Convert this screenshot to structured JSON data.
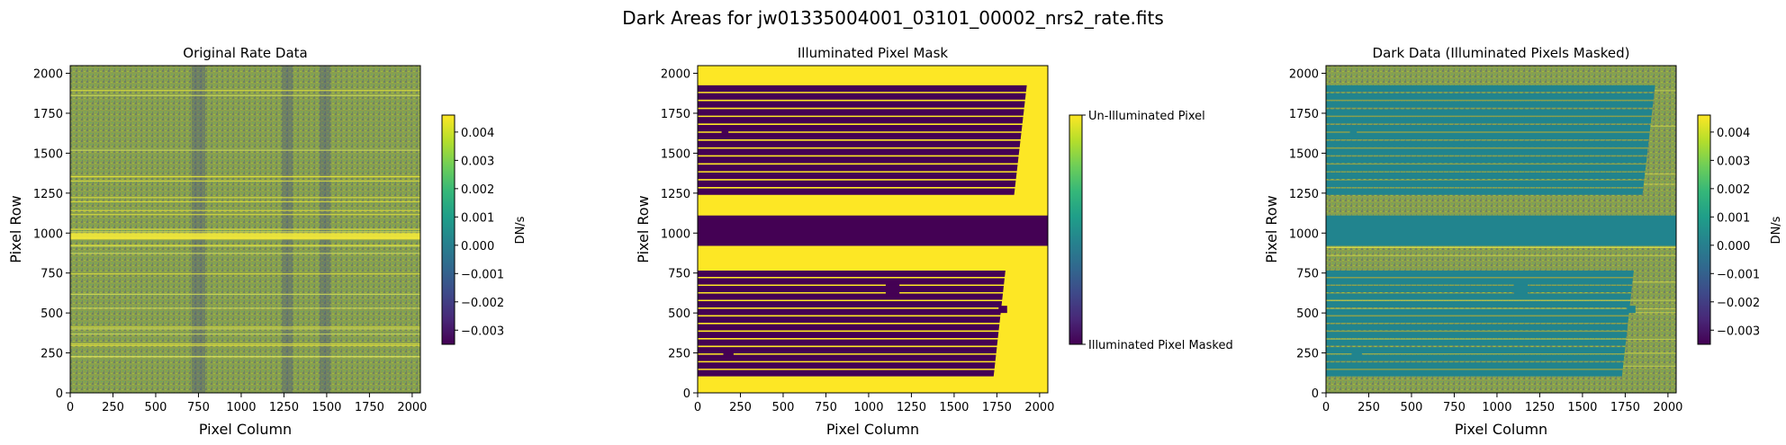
{
  "figure": {
    "suptitle": "Dark Areas for jw01335004001_03101_00002_nrs2_rate.fits"
  },
  "colors": {
    "viridis": [
      "#440154",
      "#482878",
      "#3e4989",
      "#31688e",
      "#26828e",
      "#1f9e89",
      "#35b779",
      "#6ece58",
      "#b5de2b",
      "#fde725"
    ],
    "mask_dark": "#440154",
    "mask_bright": "#fde725",
    "masked_fill": "#21848e"
  },
  "chart_data": [
    {
      "type": "heatmap",
      "title": "Original Rate Data",
      "xlabel": "Pixel Column",
      "ylabel": "Pixel Row",
      "xlim": [
        0,
        2048
      ],
      "ylim": [
        0,
        2048
      ],
      "xticks": [
        "0",
        "250",
        "500",
        "750",
        "1000",
        "1250",
        "1500",
        "1750",
        "2000"
      ],
      "yticks": [
        "0",
        "250",
        "500",
        "750",
        "1000",
        "1250",
        "1500",
        "1750",
        "2000"
      ],
      "colorbar": {
        "label": "DN/s",
        "range": [
          -0.0035,
          0.0046
        ],
        "ticks": [
          "-0.003",
          "-0.002",
          "-0.001",
          "0.000",
          "0.001",
          "0.002",
          "0.003",
          "0.004"
        ]
      },
      "mean_level": 0.0012,
      "features": {
        "bright_band_rows": [
          960,
          1000
        ],
        "dark_column_bands": [
          [
            710,
            790
          ],
          [
            1240,
            1300
          ],
          [
            1460,
            1520
          ]
        ]
      }
    },
    {
      "type": "heatmap",
      "title": "Illuminated Pixel Mask",
      "xlabel": "Pixel Column",
      "ylabel": "Pixel Row",
      "xlim": [
        0,
        2048
      ],
      "ylim": [
        0,
        2048
      ],
      "xticks": [
        "0",
        "250",
        "500",
        "750",
        "1000",
        "1250",
        "1500",
        "1750",
        "2000"
      ],
      "yticks": [
        "0",
        "250",
        "500",
        "750",
        "1000",
        "1250",
        "1500",
        "1750",
        "2000"
      ],
      "colorbar": {
        "label": "",
        "ticks": [
          "Illuminated Pixel Masked",
          "Un-Illuminated Pixel"
        ]
      },
      "masked_regions": {
        "band_rows": [
          920,
          1110
        ],
        "upper_stripes": {
          "row_range": [
            1230,
            1925
          ],
          "count": 14,
          "x_start": 0,
          "x_end_bottom": 1850,
          "x_end_top": 1925
        },
        "lower_stripes": {
          "row_range": [
            95,
            765
          ],
          "count": 14,
          "x_start": 0,
          "x_end_bottom": 1730,
          "x_end_top": 1800
        },
        "blocks": [
          {
            "x": [
              150,
              210
            ],
            "y": [
              200,
              250
            ]
          },
          {
            "x": [
              1100,
              1180
            ],
            "y": [
              620,
              680
            ]
          },
          {
            "x": [
              1760,
              1810
            ],
            "y": [
              500,
              545
            ]
          },
          {
            "x": [
              140,
              180
            ],
            "y": [
              1620,
              1660
            ]
          }
        ]
      }
    },
    {
      "type": "heatmap",
      "title": "Dark Data (Illuminated Pixels Masked)",
      "xlabel": "Pixel Column",
      "ylabel": "Pixel Row",
      "xlim": [
        0,
        2048
      ],
      "ylim": [
        0,
        2048
      ],
      "xticks": [
        "0",
        "250",
        "500",
        "750",
        "1000",
        "1250",
        "1500",
        "1750",
        "2000"
      ],
      "yticks": [
        "0",
        "250",
        "500",
        "750",
        "1000",
        "1250",
        "1500",
        "1750",
        "2000"
      ],
      "colorbar": {
        "label": "DN/s",
        "range": [
          -0.0035,
          0.0046
        ],
        "ticks": [
          "-0.003",
          "-0.002",
          "-0.001",
          "0.000",
          "0.001",
          "0.002",
          "0.003",
          "0.004"
        ]
      },
      "masked_value": 0.0
    }
  ]
}
